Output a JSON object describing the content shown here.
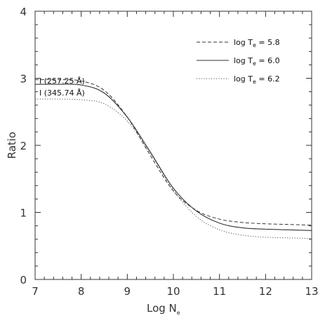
{
  "chart_data": {
    "type": "line",
    "xlabel": {
      "main": "Log N",
      "sub": "e"
    },
    "ylabel": "Ratio",
    "xlim": [
      7,
      13
    ],
    "ylim": [
      0,
      4
    ],
    "xticks": [
      "7",
      "8",
      "9",
      "10",
      "11",
      "12",
      "13"
    ],
    "yticks": [
      "0",
      "1",
      "2",
      "3",
      "4"
    ],
    "grid": false,
    "legend_position": "top-right",
    "annotation": {
      "line1": "I (257.25 Å)",
      "line2": "I (345.74 Å)"
    },
    "series": [
      {
        "legend_main": "log T",
        "legend_sub": "e",
        "legend_value": " = 5.8",
        "style": "dashed",
        "x": [
          7.0,
          7.5,
          8.0,
          8.5,
          9.0,
          9.5,
          10.0,
          10.5,
          11.0,
          11.5,
          12.0,
          12.5,
          13.0
        ],
        "y": [
          2.98,
          2.98,
          2.96,
          2.82,
          2.42,
          1.85,
          1.32,
          1.03,
          0.9,
          0.85,
          0.83,
          0.82,
          0.81
        ]
      },
      {
        "legend_main": "log T",
        "legend_sub": "e",
        "legend_value": " = 6.0",
        "style": "solid",
        "x": [
          7.0,
          7.5,
          8.0,
          8.5,
          9.0,
          9.5,
          10.0,
          10.5,
          11.0,
          11.5,
          12.0,
          12.5,
          13.0
        ],
        "y": [
          2.91,
          2.91,
          2.9,
          2.78,
          2.42,
          1.9,
          1.36,
          1.02,
          0.84,
          0.77,
          0.75,
          0.74,
          0.73
        ]
      },
      {
        "legend_main": "log T",
        "legend_sub": "e",
        "legend_value": " = 6.2",
        "style": "dotted",
        "x": [
          7.0,
          7.5,
          8.0,
          8.5,
          9.0,
          9.5,
          10.0,
          10.5,
          11.0,
          11.5,
          12.0,
          12.5,
          13.0
        ],
        "y": [
          2.69,
          2.69,
          2.68,
          2.62,
          2.36,
          1.88,
          1.33,
          0.94,
          0.74,
          0.66,
          0.63,
          0.62,
          0.61
        ]
      }
    ]
  }
}
